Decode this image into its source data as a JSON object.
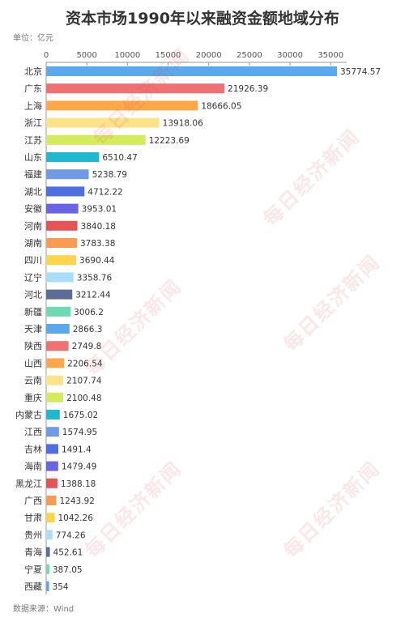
{
  "header": {
    "title": "资本市场1990年以来融资金额地域分布",
    "unit": "单位：亿元"
  },
  "footer": {
    "source": "数据来源：Wind"
  },
  "watermark_text": "每日经济新闻",
  "chart_data": {
    "type": "bar",
    "orientation": "horizontal",
    "title": "资本市场1990年以来融资金额地域分布",
    "xlabel": "",
    "ylabel": "",
    "xlim": [
      0,
      35774.57
    ],
    "xticks": [
      0,
      5000,
      10000,
      15000,
      20000,
      25000,
      30000,
      35000
    ],
    "grid": false,
    "legend": "none",
    "categories": [
      "北京",
      "广东",
      "上海",
      "浙江",
      "江苏",
      "山东",
      "福建",
      "湖北",
      "安徽",
      "河南",
      "湖南",
      "四川",
      "辽宁",
      "河北",
      "新疆",
      "天津",
      "陕西",
      "山西",
      "云南",
      "重庆",
      "内蒙古",
      "江西",
      "吉林",
      "海南",
      "黑龙江",
      "广西",
      "甘肃",
      "贵州",
      "青海",
      "宁夏",
      "西藏"
    ],
    "values": [
      35774.57,
      21926.39,
      18666.05,
      13918.06,
      12223.69,
      6510.47,
      5238.79,
      4712.22,
      3953.01,
      3840.18,
      3783.38,
      3690.44,
      3358.76,
      3212.44,
      3006.2,
      2866.3,
      2749.8,
      2206.54,
      2107.74,
      2100.48,
      1675.02,
      1574.95,
      1491.4,
      1479.49,
      1388.18,
      1243.92,
      1042.26,
      774.26,
      452.61,
      387.05,
      354
    ],
    "value_labels": [
      "35774.57",
      "21926.39",
      "18666.05",
      "13918.06",
      "12223.69",
      "6510.47",
      "5238.79",
      "4712.22",
      "3953.01",
      "3840.18",
      "3783.38",
      "3690.44",
      "3358.76",
      "3212.44",
      "3006.2",
      "2866.3",
      "2749.8",
      "2206.54",
      "2107.74",
      "2100.48",
      "1675.02",
      "1574.95",
      "1491.4",
      "1479.49",
      "1388.18",
      "1243.92",
      "1042.26",
      "774.26",
      "452.61",
      "387.05",
      "354"
    ],
    "colors": [
      "#5aa9ee",
      "#f07172",
      "#fca84a",
      "#fce38a",
      "#d6ea5e",
      "#1fb8d0",
      "#6e9ae6",
      "#4d6fe0",
      "#6a63e4",
      "#e55454",
      "#fb9b52",
      "#fcd648",
      "#a9defa",
      "#5b6c96",
      "#6ddab2"
    ]
  }
}
